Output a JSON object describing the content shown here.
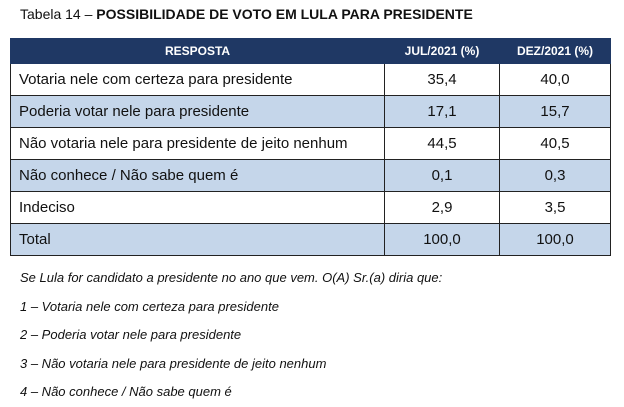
{
  "title": {
    "prefix": "Tabela 14 – ",
    "main": "POSSIBILIDADE DE VOTO EM LULA PARA PRESIDENTE"
  },
  "table": {
    "headers": [
      "RESPOSTA",
      "JUL/2021 (%)",
      "DEZ/2021 (%)"
    ],
    "rows": [
      {
        "label": "Votaria nele com certeza para presidente",
        "jul": "35,4",
        "dez": "40,0"
      },
      {
        "label": "Poderia votar nele para presidente",
        "jul": "17,1",
        "dez": "15,7"
      },
      {
        "label": "Não votaria nele para presidente de jeito nenhum",
        "jul": "44,5",
        "dez": "40,5"
      },
      {
        "label": "Não conhece / Não sabe quem é",
        "jul": "0,1",
        "dez": "0,3"
      },
      {
        "label": "Indeciso",
        "jul": "2,9",
        "dez": "3,5"
      },
      {
        "label": "Total",
        "jul": "100,0",
        "dez": "100,0"
      }
    ]
  },
  "notes": [
    "Se Lula for candidato a presidente no ano que vem. O(A) Sr.(a) diria que:",
    "1 – Votaria nele com certeza para presidente",
    "2 – Poderia votar nele para presidente",
    "3 – Não votaria nele para presidente de jeito nenhum",
    "4 – Não conhece / Não sabe quem é"
  ],
  "colors": {
    "header_bg": "#1f3864",
    "row_shade": "#c5d6ea"
  }
}
